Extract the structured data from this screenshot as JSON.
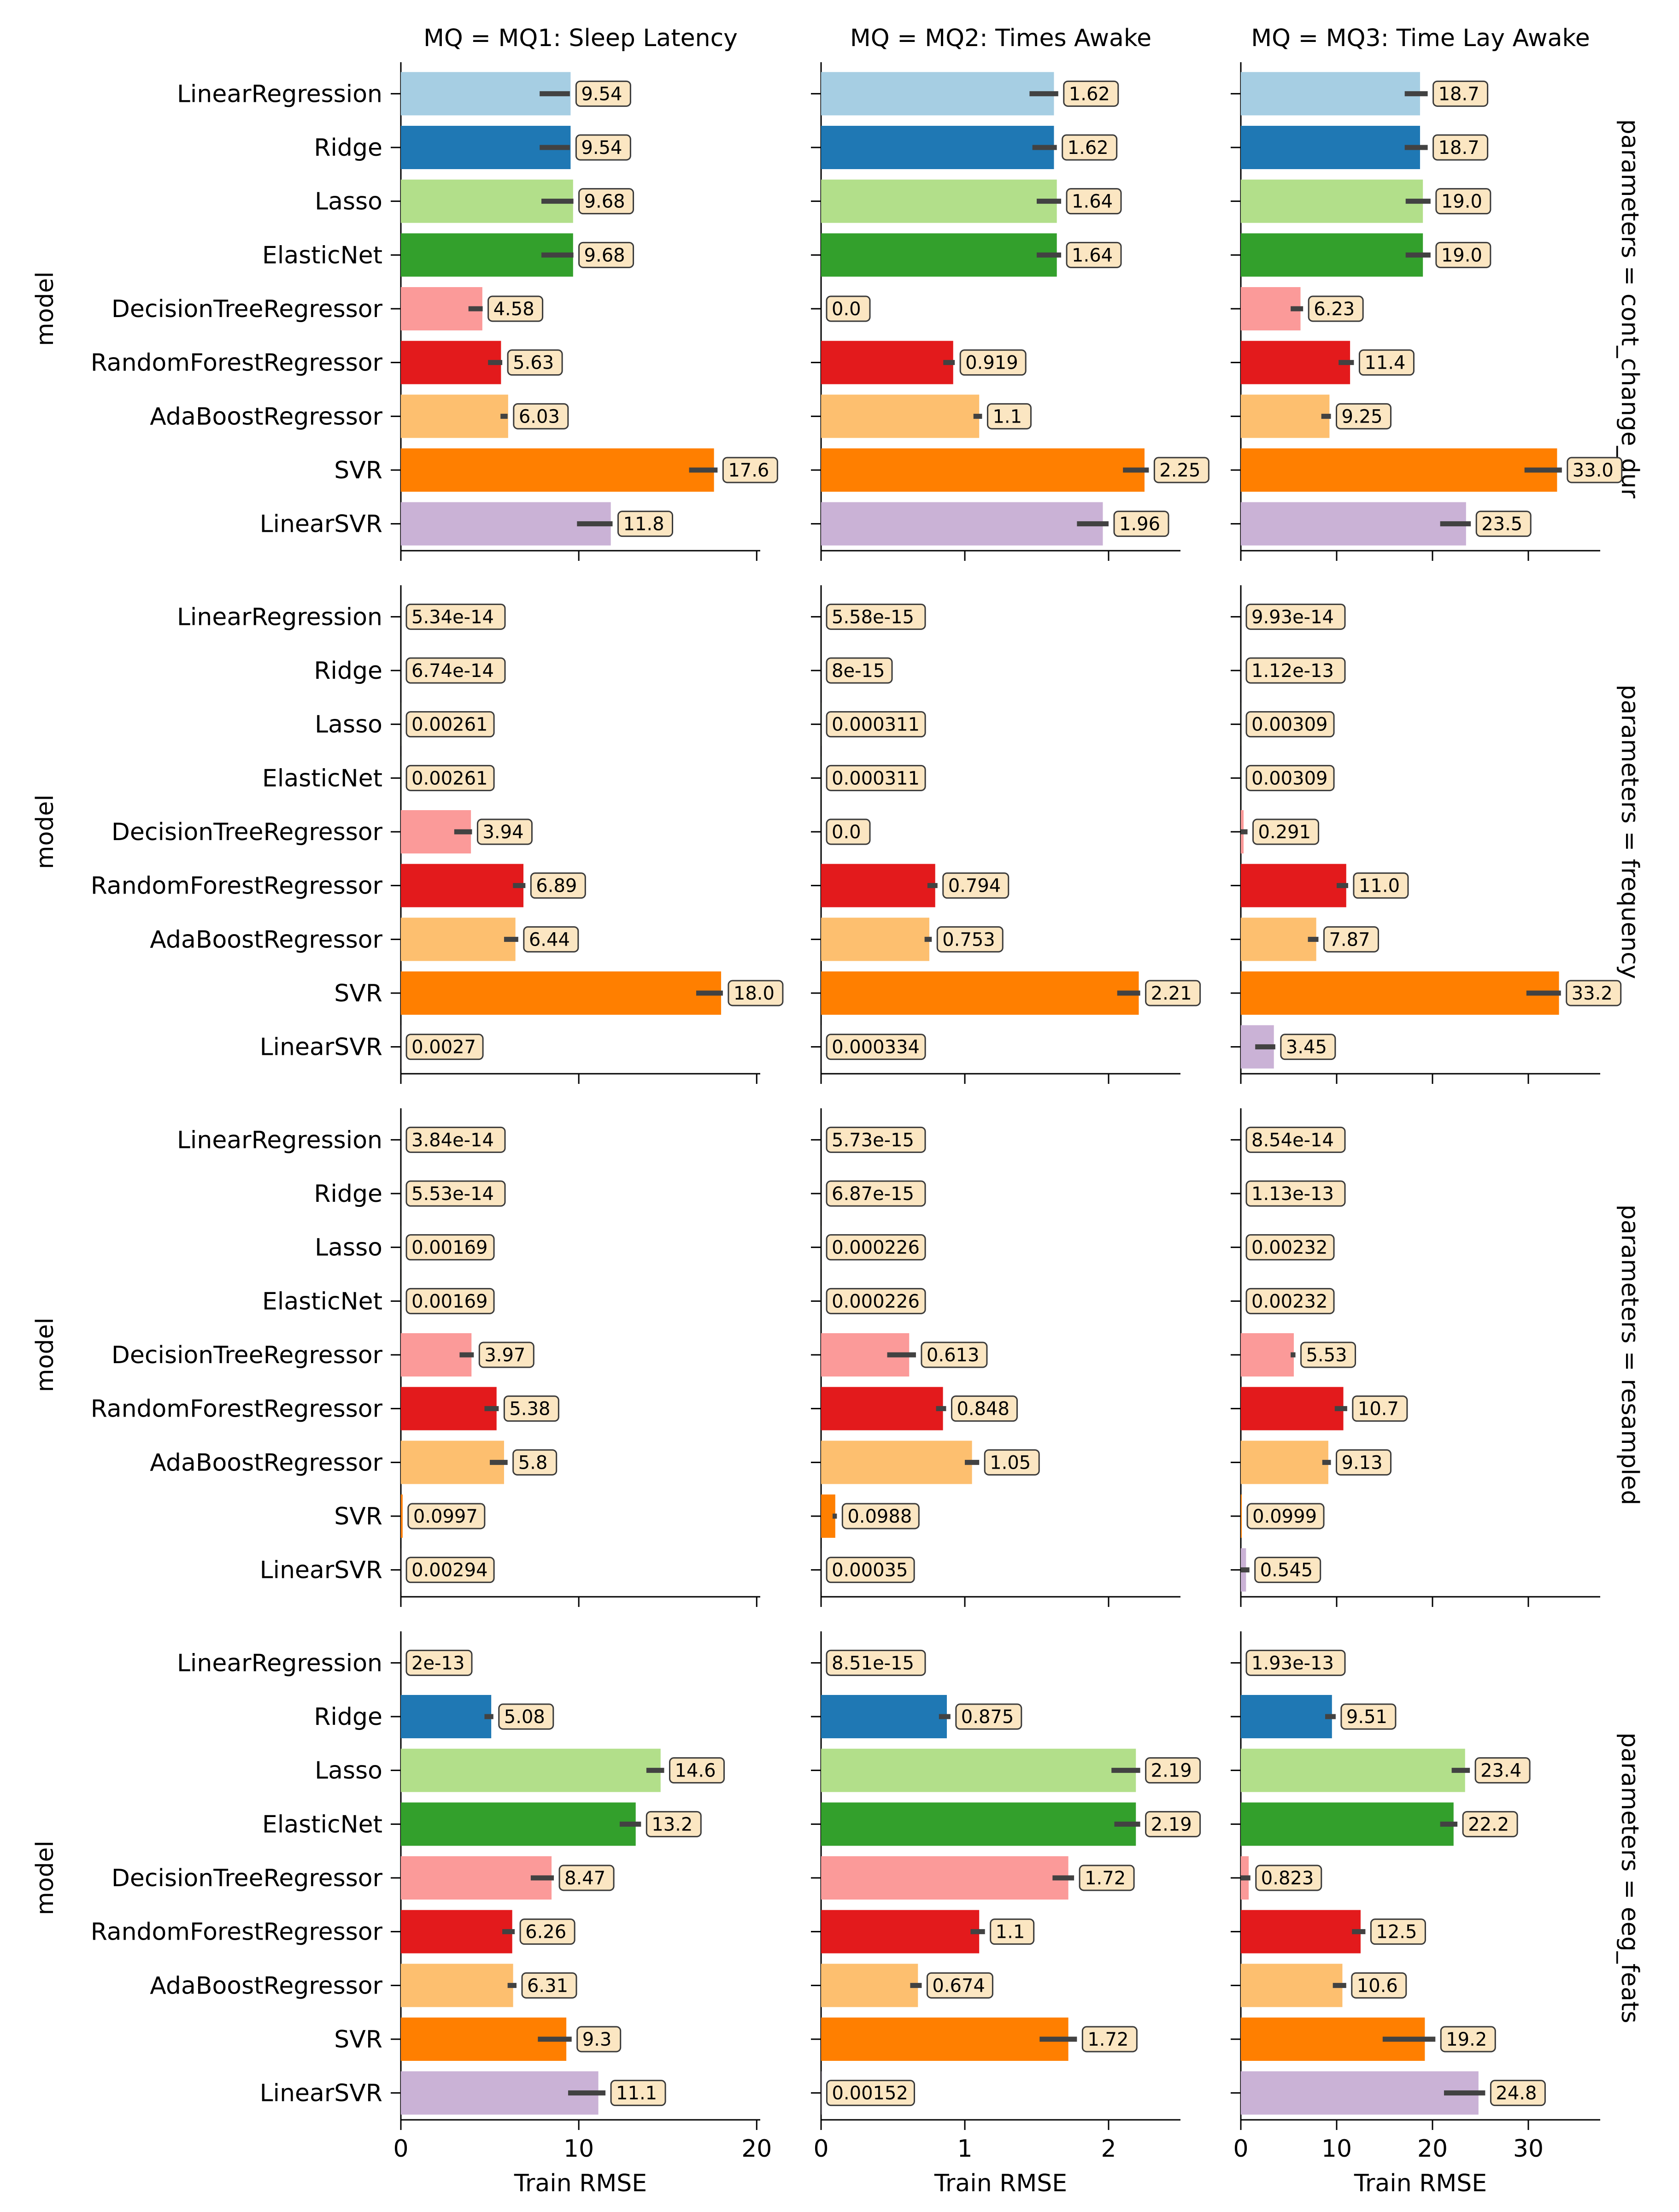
{
  "chart_data": {
    "type": "bar",
    "orientation": "horizontal",
    "categories": [
      "LinearRegression",
      "Ridge",
      "Lasso",
      "ElasticNet",
      "DecisionTreeRegressor",
      "RandomForestRegressor",
      "AdaBoostRegressor",
      "SVR",
      "LinearSVR"
    ],
    "ylabel": "model",
    "xlabel": "Train RMSE",
    "col_titles": [
      "MQ = MQ1: Sleep Latency",
      "MQ = MQ2: Times Awake",
      "MQ = MQ3: Time Lay Awake"
    ],
    "row_titles": [
      "parameters = cont_change_dur",
      "parameters = frequency",
      "parameters = resampled",
      "parameters = eeg_feats"
    ],
    "xlim": [
      [
        0,
        20.2
      ],
      [
        0,
        2.5
      ],
      [
        0,
        37.5
      ]
    ],
    "xticks": [
      [
        0,
        10,
        20
      ],
      [
        0,
        1,
        2
      ],
      [
        0,
        10,
        20,
        30
      ]
    ],
    "bar_colors": [
      "#a6cee3",
      "#1f78b4",
      "#b2df8a",
      "#33a02c",
      "#fb9a99",
      "#e31a1c",
      "#fdbf6f",
      "#ff7f00",
      "#cab2d6"
    ],
    "label_box_color": "#fbe6c2",
    "panels": [
      [
        {
          "values": [
            9.54,
            9.54,
            9.68,
            9.68,
            4.58,
            5.63,
            6.03,
            17.6,
            11.8
          ],
          "labels": [
            "9.54",
            "9.54",
            "9.68",
            "9.68",
            "4.58",
            "5.63",
            "6.03",
            "17.6",
            "11.8"
          ],
          "err": [
            [
              7.8,
              9.5
            ],
            [
              7.8,
              9.5
            ],
            [
              7.9,
              9.7
            ],
            [
              7.9,
              9.7
            ],
            [
              3.8,
              4.6
            ],
            [
              4.9,
              5.7
            ],
            [
              5.6,
              6.0
            ],
            [
              16.2,
              17.8
            ],
            [
              9.9,
              11.9
            ]
          ]
        },
        {
          "values": [
            1.62,
            1.62,
            1.64,
            1.64,
            0.0,
            0.919,
            1.1,
            2.25,
            1.96
          ],
          "labels": [
            "1.62",
            "1.62",
            "1.64",
            "1.64",
            "0.0",
            "0.919",
            "1.1",
            "2.25",
            "1.96"
          ],
          "err": [
            [
              1.45,
              1.65
            ],
            [
              1.47,
              1.64
            ],
            [
              1.5,
              1.67
            ],
            [
              1.5,
              1.67
            ],
            null,
            [
              0.85,
              0.93
            ],
            [
              1.06,
              1.12
            ],
            [
              2.1,
              2.28
            ],
            [
              1.78,
              2.0
            ]
          ]
        },
        {
          "values": [
            18.7,
            18.7,
            19.0,
            19.0,
            6.23,
            11.4,
            9.25,
            33.0,
            23.5
          ],
          "labels": [
            "18.7",
            "18.7",
            "19.0",
            "19.0",
            "6.23",
            "11.4",
            "9.25",
            "33.0",
            "23.5"
          ],
          "err": [
            [
              17.1,
              19.5
            ],
            [
              17.1,
              19.5
            ],
            [
              17.2,
              19.8
            ],
            [
              17.2,
              19.8
            ],
            [
              5.2,
              6.5
            ],
            [
              10.2,
              11.8
            ],
            [
              8.4,
              9.4
            ],
            [
              29.6,
              33.5
            ],
            [
              20.8,
              24.0
            ]
          ]
        }
      ],
      [
        {
          "values": [
            5.34e-14,
            6.74e-14,
            0.00261,
            0.00261,
            3.94,
            6.89,
            6.44,
            18.0,
            0.0027
          ],
          "labels": [
            "5.34e-14",
            "6.74e-14",
            "0.00261",
            "0.00261",
            "3.94",
            "6.89",
            "6.44",
            "18.0",
            "0.0027"
          ],
          "err": [
            null,
            null,
            null,
            null,
            [
              3.0,
              4.0
            ],
            [
              6.3,
              7.0
            ],
            [
              5.8,
              6.6
            ],
            [
              16.6,
              18.1
            ],
            null
          ]
        },
        {
          "values": [
            5.58e-15,
            8e-15,
            0.000311,
            0.000311,
            0.0,
            0.794,
            0.753,
            2.21,
            0.000334
          ],
          "labels": [
            "5.58e-15",
            "8e-15",
            "0.000311",
            "0.000311",
            "0.0",
            "0.794",
            "0.753",
            "2.21",
            "0.000334"
          ],
          "err": [
            null,
            null,
            null,
            null,
            null,
            [
              0.74,
              0.81
            ],
            [
              0.72,
              0.77
            ],
            [
              2.06,
              2.22
            ],
            null
          ]
        },
        {
          "values": [
            9.93e-14,
            1.12e-13,
            0.00309,
            0.00309,
            0.291,
            11.0,
            7.87,
            33.2,
            3.45
          ],
          "labels": [
            "9.93e-14",
            "1.12e-13",
            "0.00309",
            "0.00309",
            "0.291",
            "11.0",
            "7.87",
            "33.2",
            "3.45"
          ],
          "err": [
            null,
            null,
            null,
            null,
            [
              0,
              0.7
            ],
            [
              10.0,
              11.2
            ],
            [
              7.0,
              8.1
            ],
            [
              29.8,
              33.4
            ],
            [
              1.5,
              3.6
            ]
          ]
        }
      ],
      [
        {
          "values": [
            3.84e-14,
            5.53e-14,
            0.00169,
            0.00169,
            3.97,
            5.38,
            5.8,
            0.0997,
            0.00294
          ],
          "labels": [
            "3.84e-14",
            "5.53e-14",
            "0.00169",
            "0.00169",
            "3.97",
            "5.38",
            "5.8",
            "0.0997",
            "0.00294"
          ],
          "err": [
            null,
            null,
            null,
            null,
            [
              3.3,
              4.1
            ],
            [
              4.7,
              5.5
            ],
            [
              5.0,
              6.0
            ],
            null,
            null
          ]
        },
        {
          "values": [
            5.73e-15,
            6.87e-15,
            0.000226,
            0.000226,
            0.613,
            0.848,
            1.05,
            0.0988,
            0.00035
          ],
          "labels": [
            "5.73e-15",
            "6.87e-15",
            "0.000226",
            "0.000226",
            "0.613",
            "0.848",
            "1.05",
            "0.0988",
            "0.00035"
          ],
          "err": [
            null,
            null,
            null,
            null,
            [
              0.46,
              0.66
            ],
            [
              0.8,
              0.87
            ],
            [
              1.0,
              1.1
            ],
            [
              0.08,
              0.11
            ],
            null
          ]
        },
        {
          "values": [
            8.54e-14,
            1.13e-13,
            0.00232,
            0.00232,
            5.53,
            10.7,
            9.13,
            0.0999,
            0.545
          ],
          "labels": [
            "8.54e-14",
            "1.13e-13",
            "0.00232",
            "0.00232",
            "5.53",
            "10.7",
            "9.13",
            "0.0999",
            "0.545"
          ],
          "err": [
            null,
            null,
            null,
            null,
            [
              5.2,
              5.7
            ],
            [
              9.8,
              11.1
            ],
            [
              8.5,
              9.4
            ],
            null,
            [
              0,
              0.9
            ]
          ]
        }
      ],
      [
        {
          "values": [
            2e-13,
            5.08,
            14.6,
            13.2,
            8.47,
            6.26,
            6.31,
            9.3,
            11.1
          ],
          "labels": [
            "2e-13",
            "5.08",
            "14.6",
            "13.2",
            "8.47",
            "6.26",
            "6.31",
            "9.3",
            "11.1"
          ],
          "err": [
            null,
            [
              4.7,
              5.2
            ],
            [
              13.8,
              14.8
            ],
            [
              12.3,
              13.5
            ],
            [
              7.3,
              8.6
            ],
            [
              5.7,
              6.4
            ],
            [
              6.0,
              6.5
            ],
            [
              7.7,
              9.6
            ],
            [
              9.4,
              11.5
            ]
          ]
        },
        {
          "values": [
            8.51e-15,
            0.875,
            2.19,
            2.19,
            1.72,
            1.1,
            0.674,
            1.72,
            0.00152
          ],
          "labels": [
            "8.51e-15",
            "0.875",
            "2.19",
            "2.19",
            "1.72",
            "1.1",
            "0.674",
            "1.72",
            "0.00152"
          ],
          "err": [
            null,
            [
              0.82,
              0.9
            ],
            [
              2.02,
              2.22
            ],
            [
              2.04,
              2.22
            ],
            [
              1.61,
              1.76
            ],
            [
              1.04,
              1.14
            ],
            [
              0.62,
              0.7
            ],
            [
              1.52,
              1.78
            ],
            null
          ]
        },
        {
          "values": [
            1.93e-13,
            9.51,
            23.4,
            22.2,
            0.823,
            12.5,
            10.6,
            19.2,
            24.8
          ],
          "labels": [
            "1.93e-13",
            "9.51",
            "23.4",
            "22.2",
            "0.823",
            "12.5",
            "10.6",
            "19.2",
            "24.8"
          ],
          "err": [
            null,
            [
              8.8,
              9.9
            ],
            [
              22.0,
              23.9
            ],
            [
              20.8,
              22.6
            ],
            [
              0,
              1.0
            ],
            [
              11.6,
              13.0
            ],
            [
              9.6,
              11.0
            ],
            [
              14.8,
              20.3
            ],
            [
              21.2,
              25.5
            ]
          ]
        }
      ]
    ]
  }
}
